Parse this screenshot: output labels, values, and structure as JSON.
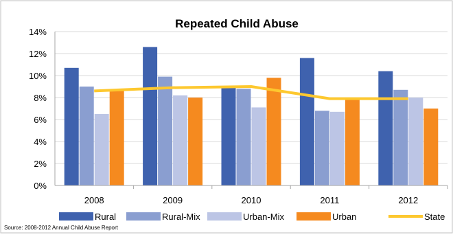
{
  "chart_data": {
    "type": "bar",
    "title": "Repeated Child Abuse",
    "categories": [
      "2008",
      "2009",
      "2010",
      "2011",
      "2012"
    ],
    "series": [
      {
        "name": "Rural",
        "type": "bar",
        "color": "#3F62AE",
        "values": [
          10.7,
          12.6,
          9.0,
          11.6,
          10.4
        ]
      },
      {
        "name": "Rural-Mix",
        "type": "bar",
        "color": "#8A9ED0",
        "values": [
          9.0,
          9.9,
          8.8,
          6.8,
          8.7
        ]
      },
      {
        "name": "Urban-Mix",
        "type": "bar",
        "color": "#BCC5E5",
        "values": [
          6.5,
          8.2,
          7.1,
          6.7,
          8.0
        ]
      },
      {
        "name": "Urban",
        "type": "bar",
        "color": "#F58A1F",
        "values": [
          8.7,
          8.0,
          9.8,
          7.8,
          7.0
        ]
      },
      {
        "name": "State",
        "type": "line",
        "color": "#FDC82F",
        "values": [
          8.6,
          8.9,
          9.0,
          7.9,
          7.9
        ]
      }
    ],
    "y_ticks": [
      "0%",
      "2%",
      "4%",
      "6%",
      "8%",
      "10%",
      "12%",
      "14%"
    ],
    "ylim": [
      0,
      14
    ],
    "grid": true,
    "legend": "bottom",
    "source": "Source: 2008-2012 Annual Child Abuse Report"
  }
}
